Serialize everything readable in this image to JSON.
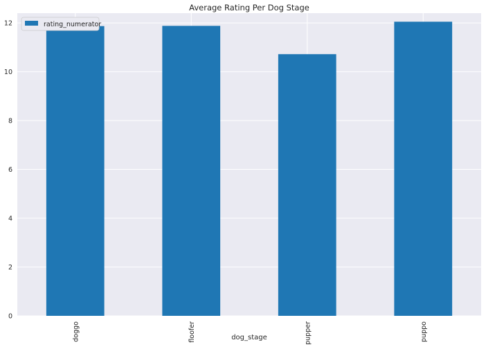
{
  "chart_data": {
    "type": "bar",
    "title": "Average Rating Per Dog Stage",
    "xlabel": "dog_stage",
    "ylabel": "",
    "categories": [
      "doggo",
      "floofer",
      "pupper",
      "puppo"
    ],
    "series": [
      {
        "name": "rating_numerator",
        "values": [
          11.87,
          11.88,
          10.72,
          12.05
        ],
        "color": "#1f77b4"
      }
    ],
    "ylim": [
      0,
      12.4
    ],
    "yticks": [
      0,
      2,
      4,
      6,
      8,
      10,
      12
    ],
    "grid": true,
    "legend_position": "top-left",
    "background_color": "#eaeaf2",
    "grid_color": "#ffffff"
  }
}
